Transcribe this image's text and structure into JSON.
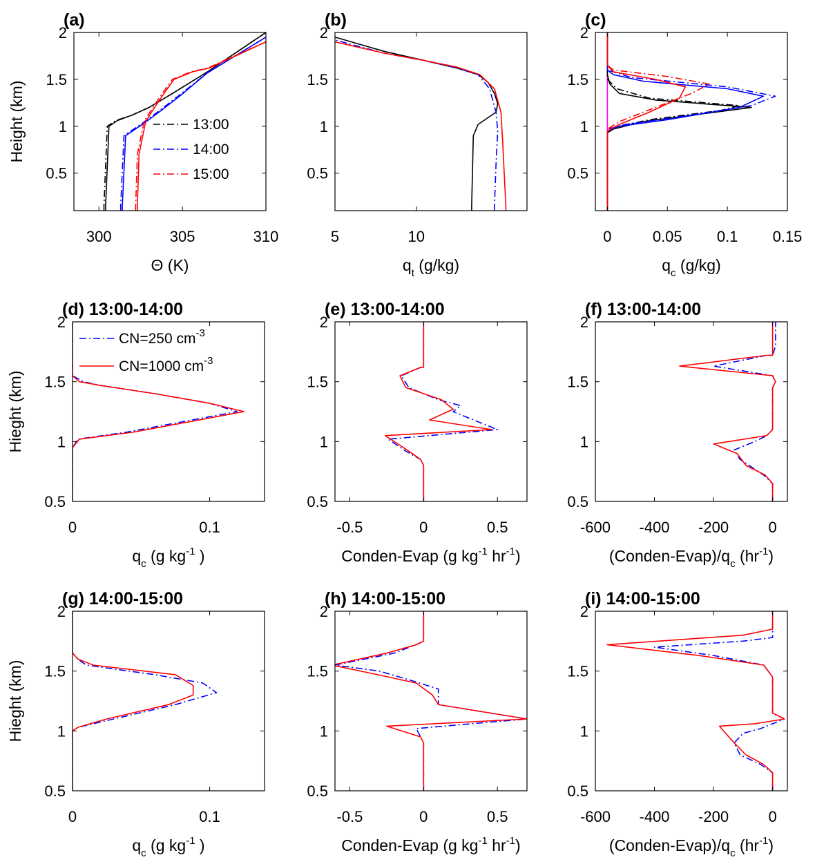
{
  "chart_data": [
    {
      "id": "a",
      "type": "line",
      "title": "(a)",
      "xlabel": "Θ (K)",
      "ylabel": "Height (km)",
      "xlim": [
        298.5,
        310
      ],
      "ylim": [
        0.1,
        2
      ],
      "xticks": [
        300,
        305,
        310
      ],
      "yticks": [
        0.5,
        1,
        1.5,
        2
      ],
      "legend": "inside-middle-right",
      "series": [
        {
          "name": "13:00",
          "color": "#000000",
          "dash": "dashdot",
          "x": [
            300.3,
            300.3,
            300.5,
            301.0,
            302.0,
            303.0,
            304.5,
            306.5,
            310.0
          ],
          "y": [
            0.1,
            0.15,
            1.0,
            1.06,
            1.12,
            1.2,
            1.36,
            1.58,
            2.0
          ]
        },
        {
          "name": "",
          "color": "#000000",
          "dash": "solid",
          "x": [
            300.4,
            300.4,
            300.6,
            301.1,
            302.0,
            303.0,
            304.5,
            306.5,
            310.0
          ],
          "y": [
            0.1,
            0.15,
            1.0,
            1.06,
            1.12,
            1.2,
            1.36,
            1.58,
            2.0
          ]
        },
        {
          "name": "14:00",
          "color": "#0000ff",
          "dash": "dashdot",
          "x": [
            301.3,
            301.3,
            301.5,
            302.5,
            303.5,
            304.8,
            306.5,
            310.0
          ],
          "y": [
            0.1,
            0.15,
            0.9,
            1.02,
            1.15,
            1.33,
            1.57,
            1.95
          ]
        },
        {
          "name": "",
          "color": "#0000ff",
          "dash": "solid",
          "x": [
            301.4,
            301.4,
            301.6,
            302.6,
            303.6,
            304.9,
            306.5,
            310.0
          ],
          "y": [
            0.1,
            0.15,
            0.9,
            1.02,
            1.15,
            1.33,
            1.57,
            1.95
          ]
        },
        {
          "name": "15:00",
          "color": "#ff0000",
          "dash": "dashdot",
          "x": [
            302.2,
            302.2,
            302.3,
            302.7,
            303.3,
            303.8,
            304.4,
            305.5,
            306.5,
            310.0
          ],
          "y": [
            0.1,
            0.15,
            0.7,
            1.05,
            1.22,
            1.35,
            1.5,
            1.58,
            1.62,
            1.9
          ]
        },
        {
          "name": "",
          "color": "#ff0000",
          "dash": "solid",
          "x": [
            302.3,
            302.3,
            302.4,
            302.8,
            303.4,
            303.9,
            304.5,
            305.6,
            306.6,
            310.0
          ],
          "y": [
            0.1,
            0.15,
            0.7,
            1.05,
            1.22,
            1.35,
            1.5,
            1.58,
            1.62,
            1.9
          ]
        }
      ]
    },
    {
      "id": "b",
      "type": "line",
      "title": "(b)",
      "xlabel": "q_t (g/kg)",
      "ylabel": "",
      "xlim": [
        5,
        16.8
      ],
      "ylim": [
        0.1,
        2
      ],
      "xticks": [
        5,
        10
      ],
      "yticks": [
        0.5,
        1,
        1.5,
        2
      ],
      "series": [
        {
          "name": "",
          "color": "#000000",
          "dash": "solid",
          "x": [
            13.4,
            13.4,
            13.5,
            13.8,
            14.9,
            15.0,
            14.8,
            14.4,
            13.8,
            12.5,
            10.5,
            8.0,
            5.0
          ],
          "y": [
            0.1,
            0.15,
            0.9,
            1.02,
            1.15,
            1.24,
            1.35,
            1.47,
            1.55,
            1.62,
            1.7,
            1.8,
            1.95
          ]
        },
        {
          "name": "",
          "color": "#0000ff",
          "dash": "dashdot",
          "x": [
            14.8,
            14.8,
            14.9,
            15.0,
            14.9,
            14.5,
            13.8,
            12.5,
            10.5,
            8.0,
            5.0
          ],
          "y": [
            0.1,
            0.15,
            0.6,
            0.95,
            1.15,
            1.4,
            1.55,
            1.62,
            1.7,
            1.78,
            1.92
          ]
        },
        {
          "name": "",
          "color": "#ff0000",
          "dash": "solid",
          "x": [
            15.5,
            15.5,
            15.4,
            15.3,
            15.2,
            14.8,
            13.9,
            12.5,
            10.5,
            8.0,
            5.0
          ],
          "y": [
            0.1,
            0.15,
            0.5,
            0.85,
            1.15,
            1.4,
            1.55,
            1.63,
            1.7,
            1.78,
            1.9
          ]
        }
      ]
    },
    {
      "id": "c",
      "type": "line",
      "title": "(c)",
      "xlabel": "q_c (g/kg)",
      "ylabel": "",
      "xlim": [
        -0.01,
        0.15
      ],
      "ylim": [
        0.1,
        2
      ],
      "xticks": [
        0,
        0.05,
        0.1,
        0.15
      ],
      "yticks": [
        0.5,
        1,
        1.5,
        2
      ],
      "series": [
        {
          "name": "",
          "color": "#ff00ff",
          "dash": "solid",
          "x": [
            0,
            0
          ],
          "y": [
            0.1,
            2.0
          ]
        },
        {
          "name": "",
          "color": "#000000",
          "dash": "solid",
          "x": [
            0,
            0,
            0.005,
            0.03,
            0.09,
            0.12,
            0.04,
            0.01,
            0.002,
            0,
            0
          ],
          "y": [
            0.1,
            0.93,
            0.97,
            1.05,
            1.15,
            1.2,
            1.28,
            1.35,
            1.45,
            1.55,
            2.0
          ]
        },
        {
          "name": "",
          "color": "#000000",
          "dash": "dashdot",
          "x": [
            0,
            0,
            0.006,
            0.035,
            0.095,
            0.11,
            0.035,
            0.008,
            0,
            0
          ],
          "y": [
            0.1,
            0.95,
            0.99,
            1.07,
            1.17,
            1.22,
            1.3,
            1.4,
            1.5,
            2.0
          ]
        },
        {
          "name": "",
          "color": "#0000ff",
          "dash": "solid",
          "x": [
            0,
            0,
            0.01,
            0.05,
            0.11,
            0.13,
            0.1,
            0.03,
            0.005,
            0,
            0
          ],
          "y": [
            0.1,
            0.95,
            1.0,
            1.07,
            1.2,
            1.32,
            1.4,
            1.48,
            1.55,
            1.6,
            2.0
          ]
        },
        {
          "name": "",
          "color": "#0000ff",
          "dash": "dashdot",
          "x": [
            0,
            0,
            0.015,
            0.06,
            0.12,
            0.14,
            0.1,
            0.02,
            0,
            0
          ],
          "y": [
            0.1,
            0.97,
            1.02,
            1.1,
            1.22,
            1.32,
            1.42,
            1.52,
            1.6,
            2.0
          ]
        },
        {
          "name": "",
          "color": "#ff0000",
          "dash": "solid",
          "x": [
            0,
            0,
            0.01,
            0.035,
            0.06,
            0.065,
            0.04,
            0.005,
            0,
            0
          ],
          "y": [
            0.1,
            0.95,
            1.02,
            1.15,
            1.3,
            1.42,
            1.5,
            1.58,
            1.65,
            2.0
          ]
        },
        {
          "name": "",
          "color": "#ff0000",
          "dash": "dashdot",
          "x": [
            0,
            0,
            0.01,
            0.04,
            0.07,
            0.085,
            0.05,
            0.005,
            0,
            0
          ],
          "y": [
            0.1,
            0.97,
            1.05,
            1.2,
            1.35,
            1.45,
            1.53,
            1.6,
            1.65,
            2.0
          ]
        }
      ]
    },
    {
      "id": "d",
      "type": "line",
      "title": "(d) 13:00-14:00",
      "xlabel": "q_c (g kg^-1 )",
      "ylabel": "Hieght (km)",
      "xlim": [
        0,
        0.14
      ],
      "ylim": [
        0.5,
        2
      ],
      "xticks": [
        0,
        0.1
      ],
      "yticks": [
        0.5,
        1,
        1.5,
        2
      ],
      "legend": "top-left",
      "series": [
        {
          "name": "CN=250 cm^-3",
          "color": "#0000ff",
          "dash": "dashdot",
          "x": [
            0,
            0,
            0.004,
            0.04,
            0.12,
            0.1,
            0.06,
            0.02,
            0.008,
            0,
            0
          ],
          "y": [
            0.5,
            0.95,
            1.02,
            1.08,
            1.25,
            1.32,
            1.4,
            1.47,
            1.5,
            1.55,
            2.0
          ]
        },
        {
          "name": "CN=1000 cm^-3",
          "color": "#ff0000",
          "dash": "solid",
          "x": [
            0,
            0,
            0.005,
            0.045,
            0.125,
            0.1,
            0.06,
            0.02,
            0.005,
            0,
            0
          ],
          "y": [
            0.5,
            0.95,
            1.02,
            1.08,
            1.25,
            1.32,
            1.4,
            1.47,
            1.5,
            1.55,
            2.0
          ]
        }
      ]
    },
    {
      "id": "e",
      "type": "line",
      "title": "(e) 13:00-14:00",
      "xlabel": "Conden-Evap (g kg^-1 hr^-1)",
      "ylabel": "",
      "xlim": [
        -0.6,
        0.7
      ],
      "ylim": [
        0.5,
        2
      ],
      "xticks": [
        -0.5,
        0,
        0.5
      ],
      "yticks": [
        0.5,
        1,
        1.5,
        2
      ],
      "series": [
        {
          "name": "",
          "color": "#0000ff",
          "dash": "dashdot",
          "x": [
            0,
            0,
            -0.02,
            -0.12,
            -0.24,
            0.5,
            0.2,
            0.25,
            0.1,
            -0.1,
            -0.15,
            -0.02,
            0,
            0
          ],
          "y": [
            0.5,
            0.8,
            0.85,
            0.92,
            1.02,
            1.1,
            1.25,
            1.3,
            1.35,
            1.45,
            1.55,
            1.62,
            1.62,
            2.0
          ]
        },
        {
          "name": "",
          "color": "#ff0000",
          "dash": "solid",
          "x": [
            0,
            0,
            -0.02,
            -0.1,
            -0.26,
            0.46,
            0.04,
            0.2,
            0.12,
            -0.12,
            -0.16,
            -0.02,
            0,
            0
          ],
          "y": [
            0.5,
            0.8,
            0.85,
            0.92,
            1.05,
            1.1,
            1.18,
            1.27,
            1.35,
            1.45,
            1.55,
            1.62,
            1.62,
            2.0
          ]
        }
      ]
    },
    {
      "id": "f",
      "type": "line",
      "title": "(f) 13:00-14:00",
      "xlabel": "(Conden-Evap)/q_c (hr^-1)",
      "ylabel": "",
      "xlim": [
        -600,
        50
      ],
      "ylim": [
        0.5,
        2
      ],
      "xticks": [
        -600,
        -400,
        -200,
        0
      ],
      "yticks": [
        0.5,
        1,
        1.5,
        2
      ],
      "series": [
        {
          "name": "",
          "color": "#0000ff",
          "dash": "dashdot",
          "x": [
            0,
            0,
            -30,
            -110,
            -130,
            -60,
            -20,
            0,
            0,
            10,
            0,
            -200,
            -20,
            0,
            10,
            10
          ],
          "y": [
            0.5,
            0.65,
            0.72,
            0.85,
            0.93,
            1.0,
            1.05,
            1.1,
            1.45,
            1.5,
            1.55,
            1.63,
            1.72,
            1.72,
            1.8,
            2.0
          ]
        },
        {
          "name": "",
          "color": "#ff0000",
          "dash": "solid",
          "x": [
            0,
            0,
            -25,
            -90,
            -120,
            -200,
            -20,
            0,
            0,
            10,
            0,
            -315,
            -20,
            0,
            0
          ],
          "y": [
            0.5,
            0.65,
            0.72,
            0.8,
            0.9,
            0.98,
            1.05,
            1.1,
            1.45,
            1.5,
            1.55,
            1.63,
            1.72,
            1.72,
            2.0
          ]
        }
      ]
    },
    {
      "id": "g",
      "type": "line",
      "title": "(g) 14:00-15:00",
      "xlabel": "q_c (g kg^-1 )",
      "ylabel": "Hieght (km)",
      "xlim": [
        0,
        0.14
      ],
      "ylim": [
        0.5,
        2
      ],
      "xticks": [
        0,
        0.1
      ],
      "yticks": [
        0.5,
        1,
        1.5,
        2
      ],
      "series": [
        {
          "name": "",
          "color": "#0000ff",
          "dash": "dashdot",
          "x": [
            0,
            0,
            0.004,
            0.03,
            0.075,
            0.105,
            0.095,
            0.06,
            0.01,
            0.004,
            0,
            0
          ],
          "y": [
            0.5,
            1.0,
            1.03,
            1.1,
            1.22,
            1.32,
            1.4,
            1.47,
            1.55,
            1.6,
            1.65,
            2.0
          ]
        },
        {
          "name": "",
          "color": "#ff0000",
          "dash": "solid",
          "x": [
            0,
            0,
            0.004,
            0.025,
            0.07,
            0.088,
            0.088,
            0.075,
            0.015,
            0.004,
            0,
            0
          ],
          "y": [
            0.5,
            1.0,
            1.03,
            1.1,
            1.22,
            1.3,
            1.38,
            1.47,
            1.55,
            1.6,
            1.65,
            2.0
          ]
        }
      ]
    },
    {
      "id": "h",
      "type": "line",
      "title": "(h) 14:00-15:00",
      "xlabel": "Conden-Evap (g kg^-1 hr^-1)",
      "ylabel": "",
      "xlim": [
        -0.6,
        0.7
      ],
      "ylim": [
        0.5,
        2
      ],
      "xticks": [
        -0.5,
        0,
        0.5
      ],
      "yticks": [
        0.5,
        1,
        1.5,
        2
      ],
      "series": [
        {
          "name": "",
          "color": "#0000ff",
          "dash": "dashdot",
          "x": [
            0,
            0,
            -0.02,
            -0.05,
            0.7,
            0.1,
            0.1,
            -0.08,
            -0.3,
            -0.6,
            -0.2,
            -0.05,
            0,
            0
          ],
          "y": [
            0.5,
            0.9,
            0.95,
            1.02,
            1.1,
            1.22,
            1.35,
            1.42,
            1.5,
            1.55,
            1.65,
            1.72,
            1.75,
            2.0
          ]
        },
        {
          "name": "",
          "color": "#ff0000",
          "dash": "solid",
          "x": [
            0,
            0,
            -0.02,
            -0.25,
            0.7,
            0.1,
            0.06,
            -0.05,
            -0.35,
            -0.62,
            -0.25,
            -0.05,
            0,
            0
          ],
          "y": [
            0.5,
            0.9,
            0.95,
            1.04,
            1.1,
            1.22,
            1.3,
            1.4,
            1.48,
            1.55,
            1.65,
            1.72,
            1.75,
            2.0
          ]
        }
      ]
    },
    {
      "id": "i",
      "type": "line",
      "title": "(i) 14:00-15:00",
      "xlabel": "(Conden-Evap)/q_c (hr^-1)",
      "ylabel": "",
      "xlim": [
        -600,
        50
      ],
      "ylim": [
        0.5,
        2
      ],
      "xticks": [
        -600,
        -400,
        -200,
        0
      ],
      "yticks": [
        0.5,
        1,
        1.5,
        2
      ],
      "series": [
        {
          "name": "",
          "color": "#0000ff",
          "dash": "dashdot",
          "x": [
            0,
            0,
            -40,
            -110,
            -130,
            -100,
            -40,
            -10,
            40,
            0,
            0,
            -30,
            -200,
            -400,
            -100,
            0,
            0,
            0
          ],
          "y": [
            0.5,
            0.65,
            0.72,
            0.8,
            0.9,
            0.98,
            1.02,
            1.05,
            1.1,
            1.15,
            1.45,
            1.55,
            1.63,
            1.7,
            1.75,
            1.78,
            1.82,
            2.0
          ]
        },
        {
          "name": "",
          "color": "#ff0000",
          "dash": "solid",
          "x": [
            0,
            0,
            -30,
            -90,
            -130,
            -180,
            -60,
            -10,
            40,
            0,
            0,
            -30,
            -250,
            -560,
            -100,
            0,
            0,
            0
          ],
          "y": [
            0.5,
            0.65,
            0.72,
            0.8,
            0.9,
            1.04,
            1.06,
            1.08,
            1.1,
            1.15,
            1.45,
            1.55,
            1.63,
            1.72,
            1.8,
            1.85,
            1.88,
            2.0
          ]
        }
      ]
    }
  ]
}
